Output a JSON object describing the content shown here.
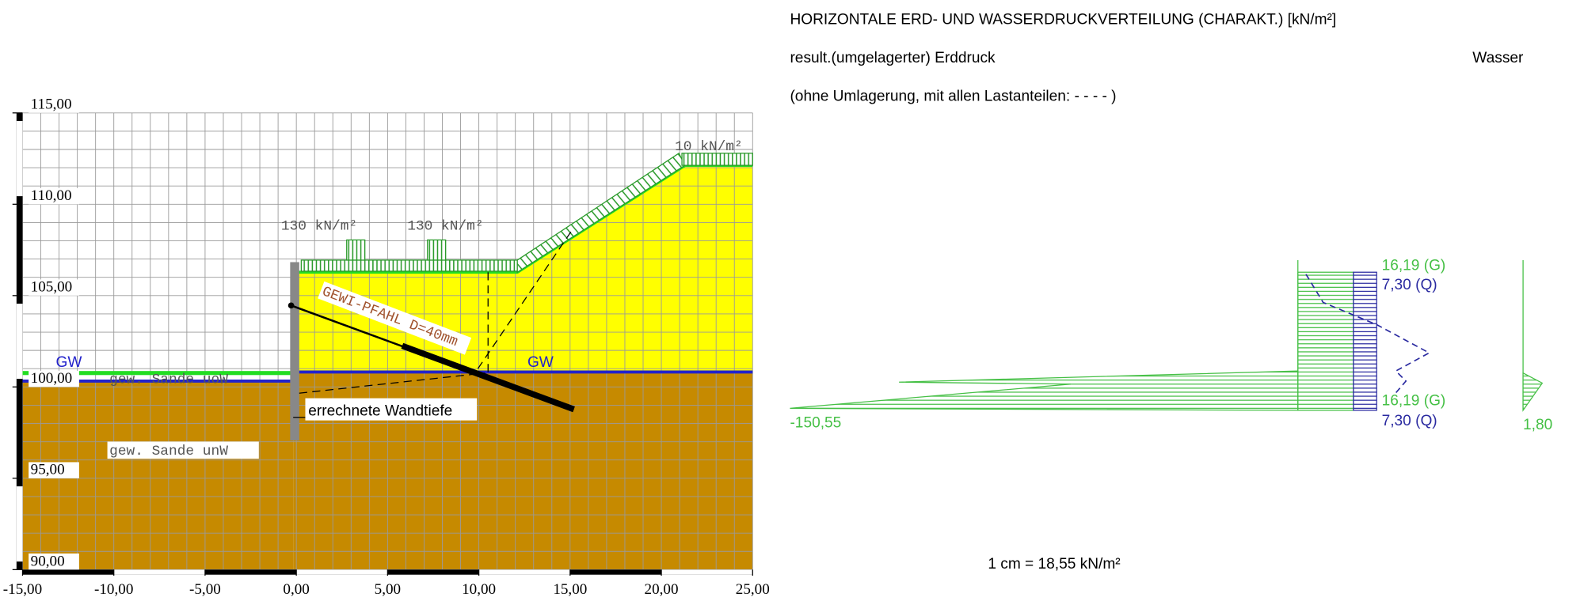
{
  "left_drawing": {
    "x_ticks": [
      {
        "value": -15,
        "label": "-15,00"
      },
      {
        "value": -10,
        "label": "-10,00"
      },
      {
        "value": -5,
        "label": "-5,00"
      },
      {
        "value": 0,
        "label": "0,00"
      },
      {
        "value": 5,
        "label": "5,00"
      },
      {
        "value": 10,
        "label": "10,00"
      },
      {
        "value": 15,
        "label": "15,00"
      },
      {
        "value": 20,
        "label": "20,00"
      },
      {
        "value": 25,
        "label": "25,00"
      }
    ],
    "y_ticks": [
      {
        "value": 115,
        "label": "115,00"
      },
      {
        "value": 110,
        "label": "110,00"
      },
      {
        "value": 105,
        "label": "105,00"
      },
      {
        "value": 100,
        "label": "100,00"
      },
      {
        "value": 95,
        "label": "95,00"
      },
      {
        "value": 90,
        "label": "90,00"
      }
    ],
    "loads": [
      "10 kN/m²",
      "130 kN/m²",
      "130 kN/m²"
    ],
    "pile_label": "GEWI-PFAHL D=40mm",
    "groundwater": [
      "GW",
      "GW"
    ],
    "soil_labels": [
      "gew. Sande uoW",
      "gew. Sande unW"
    ],
    "wall_depth_label": "errechnete Wandtiefe"
  },
  "right_diagram": {
    "title": "HORIZONTALE ERD- UND WASSERDRUCKVERTEILUNG (CHARAKT.) [kN/m²]",
    "legend_earth": "result.(umgelagerter) Erddruck",
    "legend_water": "Wasser",
    "legend_note": "(ohne Umlagerung, mit allen Lastanteilen:  - - - - )",
    "top_g": "16,19 (G)",
    "top_q": "7,30 (Q)",
    "bottom_g": "16,19 (G)",
    "bottom_q": "7,30 (Q)",
    "min_label": "-150,55",
    "water_label": "1,80",
    "scale_label": "1 cm = 18,55 kN/m²"
  }
}
